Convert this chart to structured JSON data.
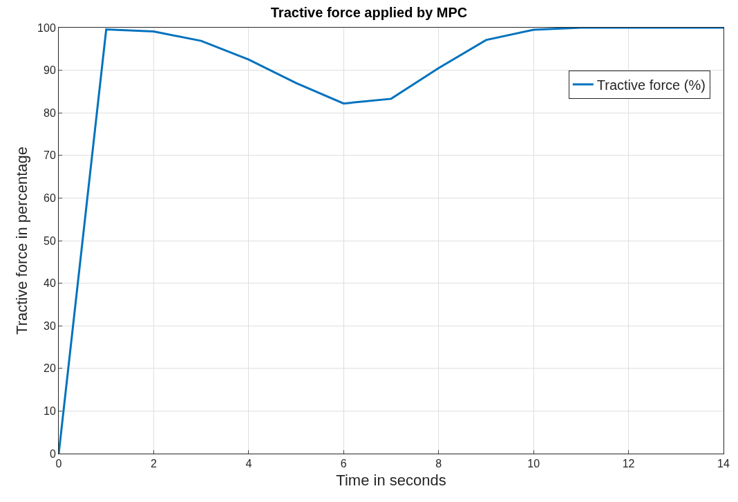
{
  "chart_data": {
    "type": "line",
    "title": "Tractive force applied by MPC",
    "xlabel": "Time in seconds",
    "ylabel": "Tractive force in percentage",
    "x": [
      0,
      1,
      2,
      3,
      4,
      5,
      6,
      7,
      8,
      9,
      10,
      11,
      12,
      13,
      14
    ],
    "series": [
      {
        "name": "Tractive force (%)",
        "color": "#0072bd",
        "values": [
          0,
          99.6,
          99.1,
          96.9,
          92.5,
          87,
          82.2,
          83.3,
          90.5,
          97.1,
          99.5,
          100,
          100,
          100,
          100
        ]
      }
    ],
    "xlim": [
      0,
      14
    ],
    "xticks": [
      0,
      2,
      4,
      6,
      8,
      10,
      12,
      14
    ],
    "ylim": [
      0,
      100
    ],
    "yticks": [
      0,
      10,
      20,
      30,
      40,
      50,
      60,
      70,
      80,
      90,
      100
    ],
    "grid": true,
    "legend": "top right",
    "marker": "none",
    "line_style": "solid"
  }
}
